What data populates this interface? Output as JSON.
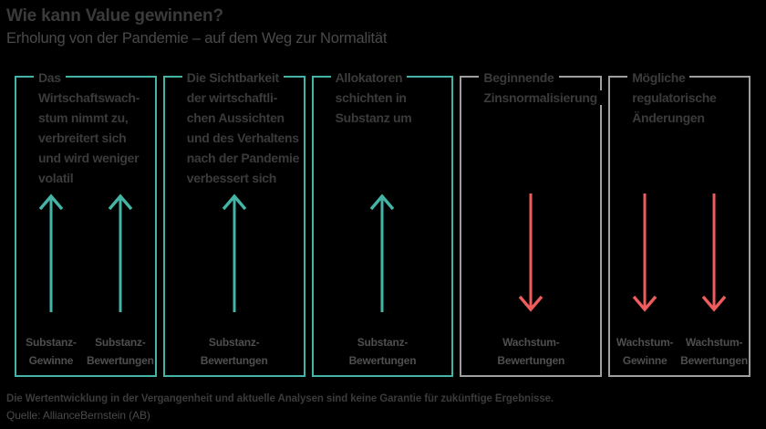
{
  "header": {
    "title": "Wie kann Value gewinnen?",
    "subtitle": "Erholung von der Pandemie – auf dem Weg zur Normalität"
  },
  "colors": {
    "background": "#000000",
    "positive_accent": "#44b4a6",
    "negative_accent": "#ef5c5d",
    "neutral_border": "#9e9e9e",
    "heading_text": "#3b3b3b",
    "label_text": "#4f4f4f"
  },
  "boxes": [
    {
      "style": "positive",
      "heading_lines": [
        "Das",
        "Wirtschaftswach-",
        "stum nimmt zu,",
        "verbreitert sich",
        "und wird weniger",
        "volatil"
      ],
      "arrows": [
        {
          "direction": "up",
          "label_lines": [
            "Substanz-",
            "Gewinne"
          ]
        },
        {
          "direction": "up",
          "label_lines": [
            "Substanz-",
            "Bewertungen"
          ]
        }
      ]
    },
    {
      "style": "positive",
      "heading_lines": [
        "Die Sichtbarkeit",
        "der wirtschaftli-",
        "chen Aussichten",
        "und des Verhaltens",
        "nach der Pandemie",
        "verbessert sich"
      ],
      "arrows": [
        {
          "direction": "up",
          "label_lines": [
            "Substanz-",
            "Bewertungen"
          ]
        }
      ]
    },
    {
      "style": "positive",
      "heading_lines": [
        "Allokatoren",
        "schichten in",
        "Substanz um"
      ],
      "arrows": [
        {
          "direction": "up",
          "label_lines": [
            "Substanz-",
            "Bewertungen"
          ]
        }
      ]
    },
    {
      "style": "negative",
      "heading_lines": [
        "Beginnende",
        "Zinsnormalisierung"
      ],
      "arrows": [
        {
          "direction": "down",
          "label_lines": [
            "Wachstum-",
            "Bewertungen"
          ]
        }
      ]
    },
    {
      "style": "negative",
      "heading_lines": [
        "Mögliche",
        "regulatorische",
        "Änderungen"
      ],
      "arrows": [
        {
          "direction": "down",
          "label_lines": [
            "Wachstum-",
            "Gewinne"
          ]
        },
        {
          "direction": "down",
          "label_lines": [
            "Wachstum-",
            "Bewertungen"
          ]
        }
      ]
    }
  ],
  "footer": {
    "disclaimer": "Die Wertentwicklung in der Vergangenheit und aktuelle Analysen sind keine Garantie für zukünftige Ergebnisse.",
    "source": "Quelle: AllianceBernstein (AB)"
  }
}
